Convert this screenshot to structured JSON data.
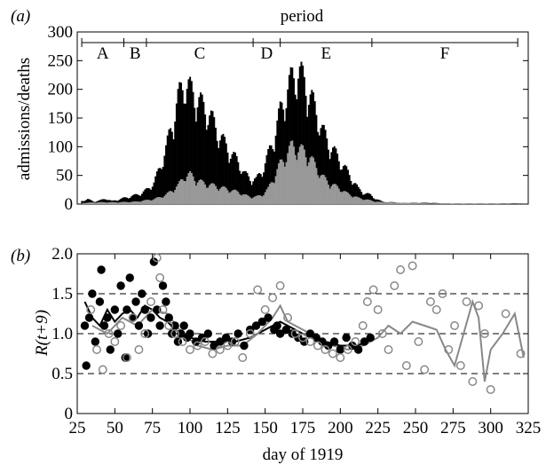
{
  "figure": {
    "panel_a_label": "(a)",
    "panel_b_label": "(b)",
    "period_title": "period",
    "xlabel": "day of 1919",
    "a_ylabel": "admissions/deaths",
    "b_ylabel": "R(t+9)"
  },
  "chart_data": [
    {
      "panel": "(a)",
      "type": "bar",
      "title": "period",
      "xlabel": "day of 1919",
      "ylabel": "admissions/deaths",
      "xlim": [
        25,
        325
      ],
      "ylim": [
        0,
        300
      ],
      "y_ticks": [
        0,
        50,
        100,
        150,
        200,
        250,
        300
      ],
      "periods": [
        {
          "label": "A",
          "start": 28,
          "end": 56
        },
        {
          "label": "B",
          "start": 56,
          "end": 71
        },
        {
          "label": "C",
          "start": 71,
          "end": 142
        },
        {
          "label": "D",
          "start": 142,
          "end": 160
        },
        {
          "label": "E",
          "start": 160,
          "end": 221
        },
        {
          "label": "F",
          "start": 221,
          "end": 318
        }
      ],
      "series": [
        {
          "color": "#000000",
          "x": [
            28,
            32,
            36,
            40,
            44,
            48,
            52,
            56,
            60,
            64,
            68,
            72,
            76,
            80,
            84,
            88,
            92,
            96,
            100,
            104,
            108,
            112,
            116,
            120,
            124,
            128,
            132,
            136,
            140,
            144,
            148,
            152,
            156,
            160,
            164,
            168,
            172,
            176,
            180,
            184,
            188,
            192,
            196,
            200,
            204,
            208,
            212,
            216,
            220,
            224,
            228,
            232,
            236,
            240,
            250,
            260,
            270,
            280,
            290,
            300,
            310,
            320
          ],
          "values": [
            5,
            8,
            4,
            6,
            9,
            5,
            7,
            10,
            12,
            15,
            18,
            25,
            35,
            60,
            90,
            130,
            170,
            200,
            185,
            175,
            160,
            150,
            130,
            110,
            95,
            80,
            70,
            50,
            42,
            40,
            55,
            80,
            110,
            150,
            180,
            205,
            215,
            200,
            175,
            150,
            120,
            100,
            85,
            70,
            55,
            40,
            25,
            18,
            15,
            8,
            4,
            3,
            3,
            2,
            2,
            2,
            1,
            1,
            1,
            1,
            1,
            1
          ]
        },
        {
          "color": "#999999",
          "x": [
            28,
            40,
            52,
            64,
            76,
            84,
            92,
            96,
            100,
            104,
            108,
            112,
            116,
            120,
            124,
            128,
            132,
            136,
            140,
            144,
            148,
            152,
            156,
            160,
            164,
            168,
            172,
            176,
            180,
            184,
            188,
            192,
            196,
            200,
            204,
            208,
            212,
            216,
            220,
            224,
            228,
            240,
            260,
            280,
            300,
            320
          ],
          "values": [
            2,
            3,
            3,
            4,
            8,
            15,
            30,
            45,
            48,
            40,
            35,
            32,
            30,
            27,
            25,
            22,
            20,
            15,
            12,
            12,
            15,
            25,
            45,
            65,
            80,
            95,
            90,
            85,
            75,
            60,
            45,
            35,
            30,
            25,
            18,
            14,
            10,
            8,
            6,
            4,
            3,
            2,
            1,
            1,
            1,
            0
          ]
        }
      ]
    },
    {
      "panel": "(b)",
      "type": "scatter",
      "xlabel": "day of 1919",
      "ylabel": "R(t+9)",
      "xlim": [
        25,
        325
      ],
      "ylim": [
        0,
        2.0
      ],
      "x_ticks": [
        25,
        50,
        75,
        100,
        125,
        150,
        175,
        200,
        225,
        250,
        275,
        300,
        325
      ],
      "y_ticks": [
        0,
        0.5,
        1.0,
        1.5,
        2.0
      ],
      "reference_lines": [
        0.5,
        1.0,
        1.5
      ],
      "series": [
        {
          "marker": "filled",
          "color": "#000000",
          "x": [
            30,
            31,
            33,
            35,
            37,
            40,
            41,
            43,
            45,
            47,
            50,
            52,
            54,
            57,
            58,
            60,
            62,
            64,
            66,
            68,
            70,
            72,
            74,
            76,
            78,
            80,
            82,
            84,
            86,
            88,
            90,
            92,
            94,
            96,
            98,
            100,
            104,
            108,
            112,
            116,
            120,
            124,
            128,
            132,
            136,
            140,
            144,
            148,
            152,
            156,
            158,
            160,
            164,
            168,
            172,
            176,
            180,
            184,
            188,
            192,
            196,
            200,
            204,
            208,
            212,
            216,
            220
          ],
          "y": [
            1.1,
            0.6,
            1.2,
            1.5,
            0.9,
            1.4,
            1.8,
            1.1,
            1.2,
            0.8,
            1.3,
            1.0,
            1.6,
            0.7,
            1.3,
            1.7,
            1.2,
            1.4,
            1.1,
            1.5,
            1.3,
            1.0,
            1.2,
            1.9,
            1.3,
            1.1,
            1.6,
            1.4,
            1.2,
            1.0,
            1.1,
            0.9,
            1.0,
            1.1,
            0.95,
            1.0,
            0.9,
            0.95,
            1.0,
            0.85,
            0.9,
            0.95,
            0.9,
            1.0,
            0.85,
            1.05,
            1.1,
            1.15,
            1.2,
            1.05,
            1.1,
            1.0,
            1.05,
            1.0,
            0.95,
            0.9,
            1.0,
            0.95,
            0.9,
            0.85,
            0.9,
            0.8,
            0.95,
            0.85,
            0.8,
            0.9,
            0.95
          ]
        },
        {
          "marker": "open",
          "color": "#888888",
          "x": [
            34,
            38,
            42,
            46,
            50,
            54,
            58,
            62,
            66,
            70,
            74,
            78,
            80,
            82,
            86,
            90,
            95,
            100,
            105,
            110,
            115,
            120,
            125,
            130,
            135,
            140,
            145,
            150,
            155,
            160,
            165,
            170,
            175,
            180,
            185,
            190,
            195,
            200,
            205,
            210,
            215,
            218,
            222,
            225,
            228,
            232,
            236,
            240,
            244,
            248,
            252,
            256,
            260,
            264,
            268,
            272,
            276,
            280,
            284,
            288,
            292,
            296,
            300,
            310,
            320
          ],
          "y": [
            1.3,
            0.8,
            0.55,
            1.0,
            0.9,
            1.1,
            0.7,
            1.2,
            0.8,
            1.0,
            1.4,
            1.95,
            1.7,
            1.3,
            1.1,
            1.0,
            0.9,
            0.8,
            0.85,
            0.9,
            0.75,
            0.8,
            0.85,
            0.9,
            0.7,
            1.0,
            1.55,
            1.3,
            1.45,
            1.6,
            1.2,
            1.0,
            0.95,
            0.9,
            0.85,
            0.8,
            0.75,
            0.7,
            0.8,
            0.9,
            1.1,
            1.4,
            1.55,
            1.3,
            1.0,
            0.8,
            1.6,
            1.8,
            0.6,
            1.85,
            0.9,
            0.55,
            1.4,
            1.3,
            1.5,
            0.8,
            1.1,
            0.6,
            1.4,
            0.4,
            1.35,
            1.0,
            0.3,
            1.25,
            0.75
          ]
        }
      ],
      "lines": [
        {
          "color": "#000000",
          "x": [
            30,
            35,
            40,
            45,
            50,
            55,
            60,
            65,
            70,
            75,
            80,
            85,
            90,
            95,
            100,
            110,
            120,
            130,
            140,
            150,
            160,
            170,
            180,
            190,
            200,
            210,
            220
          ],
          "y": [
            1.4,
            1.2,
            1.1,
            1.3,
            1.15,
            1.25,
            1.3,
            1.2,
            1.35,
            1.3,
            1.2,
            1.15,
            1.05,
            1.0,
            0.95,
            0.9,
            0.9,
            0.9,
            0.95,
            1.05,
            1.15,
            1.05,
            0.95,
            0.9,
            0.85,
            0.85,
            0.9
          ]
        },
        {
          "color": "#888888",
          "x": [
            35,
            45,
            55,
            65,
            75,
            85,
            95,
            105,
            115,
            125,
            135,
            145,
            155,
            160,
            165,
            175,
            185,
            195,
            205,
            215,
            225,
            232,
            240,
            248,
            256,
            264,
            270,
            276,
            282,
            288,
            292,
            296,
            300,
            308,
            316,
            322
          ],
          "y": [
            1.1,
            1.0,
            1.2,
            1.1,
            1.3,
            1.25,
            1.0,
            0.85,
            0.8,
            0.85,
            0.85,
            1.0,
            1.2,
            1.35,
            1.15,
            1.05,
            0.95,
            0.85,
            0.8,
            0.85,
            0.95,
            1.1,
            1.0,
            1.15,
            1.1,
            1.05,
            0.8,
            0.6,
            1.0,
            1.4,
            1.2,
            0.4,
            0.8,
            1.0,
            1.25,
            0.7
          ]
        }
      ]
    }
  ]
}
